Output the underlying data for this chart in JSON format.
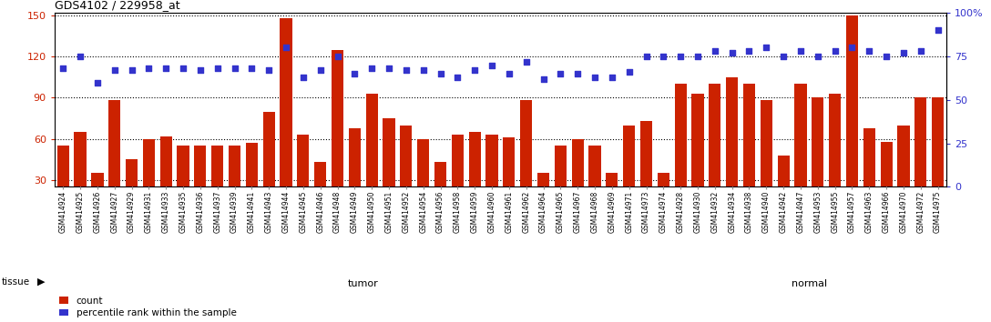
{
  "title": "GDS4102 / 229958_at",
  "samples": [
    "GSM414924",
    "GSM414925",
    "GSM414926",
    "GSM414927",
    "GSM414929",
    "GSM414931",
    "GSM414933",
    "GSM414935",
    "GSM414936",
    "GSM414937",
    "GSM414939",
    "GSM414941",
    "GSM414943",
    "GSM414944",
    "GSM414945",
    "GSM414946",
    "GSM414948",
    "GSM414949",
    "GSM414950",
    "GSM414951",
    "GSM414952",
    "GSM414954",
    "GSM414956",
    "GSM414958",
    "GSM414959",
    "GSM414960",
    "GSM414961",
    "GSM414962",
    "GSM414964",
    "GSM414965",
    "GSM414967",
    "GSM414968",
    "GSM414969",
    "GSM414971",
    "GSM414973",
    "GSM414974",
    "GSM414928",
    "GSM414930",
    "GSM414932",
    "GSM414934",
    "GSM414938",
    "GSM414940",
    "GSM414942",
    "GSM414947",
    "GSM414953",
    "GSM414955",
    "GSM414957",
    "GSM414963",
    "GSM414966",
    "GSM414970",
    "GSM414972",
    "GSM414975"
  ],
  "counts": [
    55,
    65,
    35,
    88,
    45,
    60,
    62,
    55,
    55,
    55,
    55,
    57,
    80,
    148,
    63,
    43,
    125,
    68,
    93,
    75,
    70,
    60,
    43,
    63,
    65,
    63,
    61,
    88,
    35,
    55,
    60,
    55,
    35,
    70,
    73,
    35,
    100,
    93,
    100,
    105,
    100,
    88,
    48,
    100,
    90,
    93,
    150,
    68,
    58,
    70,
    90,
    90
  ],
  "percentile": [
    68,
    75,
    60,
    67,
    67,
    68,
    68,
    68,
    67,
    68,
    68,
    68,
    67,
    80,
    63,
    67,
    75,
    65,
    68,
    68,
    67,
    67,
    65,
    63,
    67,
    70,
    65,
    72,
    62,
    65,
    65,
    63,
    63,
    66,
    75,
    75,
    75,
    75,
    78,
    77,
    78,
    80,
    75,
    78,
    75,
    78,
    80,
    78,
    75,
    77,
    78,
    90
  ],
  "tumor_count": 36,
  "bar_color": "#cc2200",
  "dot_color": "#3333cc",
  "ylim_left": [
    25,
    152
  ],
  "ylim_right": [
    0,
    100
  ],
  "yticks_left": [
    30,
    60,
    90,
    120,
    150
  ],
  "yticks_right": [
    0,
    25,
    50,
    75,
    100
  ],
  "bg_color": "#ffffff",
  "xtick_bg": "#e0e0e0",
  "tumor_color_light": "#ccffcc",
  "tumor_color": "#ccffcc",
  "normal_color": "#44dd44",
  "grid_color": "#000000"
}
